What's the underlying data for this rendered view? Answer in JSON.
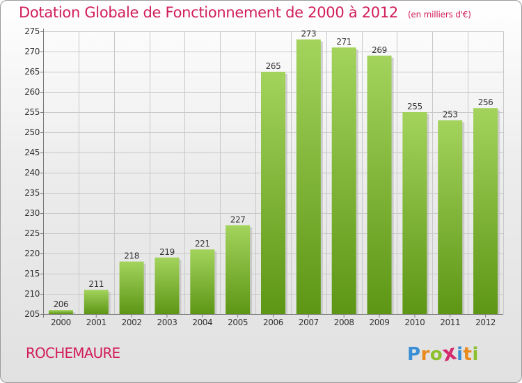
{
  "header": {
    "title": "Dotation Globale de Fonctionnement de 2000 à 2012",
    "subtitle": "(en milliers d'€)"
  },
  "commune": "ROCHEMAURE",
  "logo": {
    "letters": [
      "P",
      "r",
      "o",
      "x",
      "i",
      "t",
      "i"
    ],
    "colors": [
      "#3a8fd6",
      "#e98a1c",
      "#8cbf2c",
      "#d42a6e",
      "#3a8fd6",
      "#e98a1c",
      "#8cbf2c"
    ]
  },
  "colors": {
    "bar_top": "#a3d35c",
    "bar_bottom": "#5d9615",
    "bar_shadow": "#bdbdbd",
    "grid": "#c8c8c8",
    "title": "#d11d59"
  },
  "chart_data": {
    "type": "bar",
    "title": "Dotation Globale de Fonctionnement de 2000 à 2012",
    "subtitle": "(en milliers d'€)",
    "categories": [
      "2000",
      "2001",
      "2002",
      "2003",
      "2004",
      "2005",
      "2006",
      "2007",
      "2008",
      "2009",
      "2010",
      "2011",
      "2012"
    ],
    "values": [
      206,
      211,
      218,
      219,
      221,
      227,
      265,
      273,
      271,
      269,
      255,
      253,
      256
    ],
    "ylim": [
      205,
      275
    ],
    "yticks": [
      205,
      210,
      215,
      220,
      225,
      230,
      235,
      240,
      245,
      250,
      255,
      260,
      265,
      270,
      275
    ],
    "grid": true,
    "data_labels": true
  }
}
